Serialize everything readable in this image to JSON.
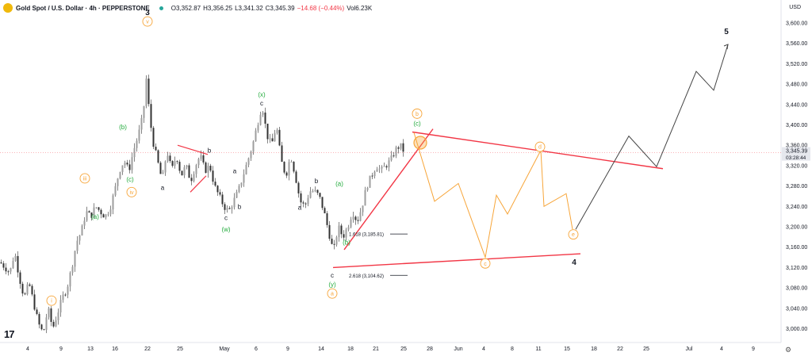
{
  "header": {
    "title": "Gold Spot / U.S. Dollar · 4h · PEPPERSTONE",
    "open": "O3,352.87",
    "high": "H3,356.25",
    "low": "L3,341.32",
    "close": "C3,345.39",
    "change": "−14.68 (−0.44%)",
    "volume": "Vol6.23K"
  },
  "axis": {
    "currency": "USD",
    "price_ticks": [
      "3,600.00",
      "3,560.00",
      "3,520.00",
      "3,480.00",
      "3,440.00",
      "3,400.00",
      "3,360.00",
      "3,320.00",
      "3,280.00",
      "3,240.00",
      "3,200.00",
      "3,160.00",
      "3,120.00",
      "3,080.00",
      "3,040.00",
      "3,000.00"
    ],
    "time_ticks": [
      "4",
      "9",
      "13",
      "16",
      "22",
      "25",
      "May",
      "6",
      "9",
      "14",
      "18",
      "21",
      "25",
      "28",
      "Jun",
      "4",
      "8",
      "11",
      "15",
      "18",
      "22",
      "25",
      "Jul",
      "4",
      "9"
    ],
    "last_price": "3,345.39",
    "countdown": "03:28:44"
  },
  "chart_data": {
    "type": "candlestick",
    "symbol": "XAUUSD",
    "timeframe": "4h",
    "ylim": [
      2980,
      3630
    ],
    "close_path": [
      [
        0,
        3130
      ],
      [
        6,
        3120
      ],
      [
        12,
        3110
      ],
      [
        18,
        3150
      ],
      [
        24,
        3100
      ],
      [
        30,
        3060
      ],
      [
        36,
        3090
      ],
      [
        42,
        3050
      ],
      [
        48,
        3010
      ],
      [
        54,
        2990
      ],
      [
        60,
        3040
      ],
      [
        66,
        3000
      ],
      [
        72,
        3030
      ],
      [
        78,
        3060
      ],
      [
        84,
        3080
      ],
      [
        90,
        3120
      ],
      [
        96,
        3170
      ],
      [
        102,
        3190
      ],
      [
        108,
        3230
      ],
      [
        114,
        3220
      ],
      [
        120,
        3240
      ],
      [
        126,
        3230
      ],
      [
        132,
        3220
      ],
      [
        138,
        3235
      ],
      [
        144,
        3270
      ],
      [
        150,
        3310
      ],
      [
        156,
        3330
      ],
      [
        162,
        3310
      ],
      [
        168,
        3350
      ],
      [
        174,
        3380
      ],
      [
        180,
        3420
      ],
      [
        184,
        3490
      ],
      [
        188,
        3420
      ],
      [
        192,
        3370
      ],
      [
        198,
        3330
      ],
      [
        204,
        3290
      ],
      [
        210,
        3350
      ],
      [
        216,
        3310
      ],
      [
        222,
        3340
      ],
      [
        228,
        3300
      ],
      [
        234,
        3320
      ],
      [
        240,
        3290
      ],
      [
        246,
        3320
      ],
      [
        252,
        3340
      ],
      [
        258,
        3310
      ],
      [
        264,
        3320
      ],
      [
        270,
        3280
      ],
      [
        276,
        3260
      ],
      [
        282,
        3240
      ],
      [
        288,
        3230
      ],
      [
        294,
        3250
      ],
      [
        300,
        3270
      ],
      [
        306,
        3300
      ],
      [
        312,
        3330
      ],
      [
        318,
        3360
      ],
      [
        324,
        3400
      ],
      [
        330,
        3440
      ],
      [
        336,
        3380
      ],
      [
        342,
        3360
      ],
      [
        348,
        3400
      ],
      [
        354,
        3330
      ],
      [
        360,
        3300
      ],
      [
        366,
        3340
      ],
      [
        372,
        3300
      ],
      [
        378,
        3250
      ],
      [
        384,
        3240
      ],
      [
        390,
        3270
      ],
      [
        396,
        3270
      ],
      [
        402,
        3260
      ],
      [
        408,
        3230
      ],
      [
        414,
        3190
      ],
      [
        420,
        3150
      ],
      [
        426,
        3200
      ],
      [
        432,
        3180
      ],
      [
        438,
        3200
      ],
      [
        444,
        3230
      ],
      [
        450,
        3210
      ],
      [
        456,
        3240
      ],
      [
        462,
        3280
      ],
      [
        468,
        3300
      ],
      [
        474,
        3320
      ],
      [
        480,
        3310
      ],
      [
        486,
        3320
      ],
      [
        492,
        3330
      ],
      [
        498,
        3350
      ],
      [
        504,
        3360
      ],
      [
        510,
        3345
      ]
    ],
    "overlay_paths": {
      "black_projection": [
        [
          726,
          3195
        ],
        [
          793,
          3378
        ],
        [
          828,
          3318
        ],
        [
          878,
          3505
        ],
        [
          900,
          3468
        ],
        [
          918,
          3558
        ]
      ],
      "orange_projection": [
        [
          522,
          3385
        ],
        [
          548,
          3250
        ],
        [
          578,
          3285
        ],
        [
          612,
          3140
        ],
        [
          626,
          3262
        ],
        [
          640,
          3225
        ],
        [
          682,
          3350
        ],
        [
          686,
          3240
        ],
        [
          714,
          3265
        ],
        [
          722,
          3195
        ]
      ],
      "red_triangle_upper": [
        [
          520,
          3386
        ],
        [
          836,
          3314
        ]
      ],
      "red_triangle_lower": [
        [
          420,
          3120
        ],
        [
          732,
          3147
        ]
      ],
      "red_wedge_rising": [
        [
          434,
          3155
        ],
        [
          546,
          3392
        ]
      ],
      "red_small_triangle": [
        [
          224,
          3360
        ],
        [
          262,
          3342
        ],
        [
          240,
          3268
        ],
        [
          260,
          3300
        ]
      ],
      "fib_1618": {
        "label": "1.618 (3,185.81)",
        "value": 3185.81,
        "x": [
          440,
          514
        ]
      },
      "fib_2618": {
        "label": "2.618 (3,104.62)",
        "value": 3104.62,
        "x": [
          440,
          514
        ]
      }
    },
    "labels": [
      {
        "t": "3",
        "x": 186,
        "y": 3620,
        "color": "#131722",
        "style": "bold"
      },
      {
        "t": "v",
        "x": 186,
        "y": 3603,
        "color": "#f7a539",
        "style": "circle"
      },
      {
        "t": "(b)",
        "x": 155,
        "y": 3396,
        "color": "#22ab3c"
      },
      {
        "t": "iii",
        "x": 107,
        "y": 3295,
        "color": "#f7a539",
        "style": "circle"
      },
      {
        "t": "(c)",
        "x": 164,
        "y": 3293,
        "color": "#22ab3c"
      },
      {
        "t": "iv",
        "x": 166,
        "y": 3268,
        "color": "#f7a539",
        "style": "circle"
      },
      {
        "t": "(a)",
        "x": 120,
        "y": 3220,
        "color": "#22ab3c"
      },
      {
        "t": "i",
        "x": 65,
        "y": 3055,
        "color": "#f7a539",
        "style": "circle"
      },
      {
        "t": "b",
        "x": 264,
        "y": 3350,
        "color": "#131722"
      },
      {
        "t": "a",
        "x": 205,
        "y": 3277,
        "color": "#131722"
      },
      {
        "t": "a",
        "x": 296,
        "y": 3310,
        "color": "#131722"
      },
      {
        "t": "b",
        "x": 302,
        "y": 3240,
        "color": "#131722"
      },
      {
        "t": "c",
        "x": 285,
        "y": 3218,
        "color": "#131722"
      },
      {
        "t": "(w)",
        "x": 285,
        "y": 3195,
        "color": "#22ab3c"
      },
      {
        "t": "(x)",
        "x": 330,
        "y": 3460,
        "color": "#22ab3c"
      },
      {
        "t": "c",
        "x": 330,
        "y": 3443,
        "color": "#131722"
      },
      {
        "t": "b",
        "x": 399,
        "y": 3290,
        "color": "#131722"
      },
      {
        "t": "a",
        "x": 378,
        "y": 3238,
        "color": "#131722"
      },
      {
        "t": "(a)",
        "x": 428,
        "y": 3285,
        "color": "#22ab3c"
      },
      {
        "t": "(b)",
        "x": 437,
        "y": 3170,
        "color": "#22ab3c"
      },
      {
        "t": "c",
        "x": 419,
        "y": 3105,
        "color": "#131722"
      },
      {
        "t": "(y)",
        "x": 419,
        "y": 3087,
        "color": "#22ab3c"
      },
      {
        "t": "a",
        "x": 419,
        "y": 3069,
        "color": "#f7a539",
        "style": "circle"
      },
      {
        "t": "b",
        "x": 526,
        "y": 3422,
        "color": "#f7a539",
        "style": "circle"
      },
      {
        "t": "(c)",
        "x": 526,
        "y": 3403,
        "color": "#22ab3c"
      },
      {
        "t": "d",
        "x": 681,
        "y": 3357,
        "color": "#f7a539",
        "style": "circle"
      },
      {
        "t": "c",
        "x": 612,
        "y": 3128,
        "color": "#f7a539",
        "style": "circle"
      },
      {
        "t": "e",
        "x": 723,
        "y": 3185,
        "color": "#f7a539",
        "style": "circle"
      },
      {
        "t": "4",
        "x": 724,
        "y": 3130,
        "color": "#131722",
        "style": "bold"
      },
      {
        "t": "5",
        "x": 916,
        "y": 3583,
        "color": "#131722",
        "style": "bold"
      }
    ],
    "highlight_circle": {
      "x": 530,
      "y": 3365,
      "color": "#f7a539"
    },
    "last_price_line": 3345.39
  }
}
